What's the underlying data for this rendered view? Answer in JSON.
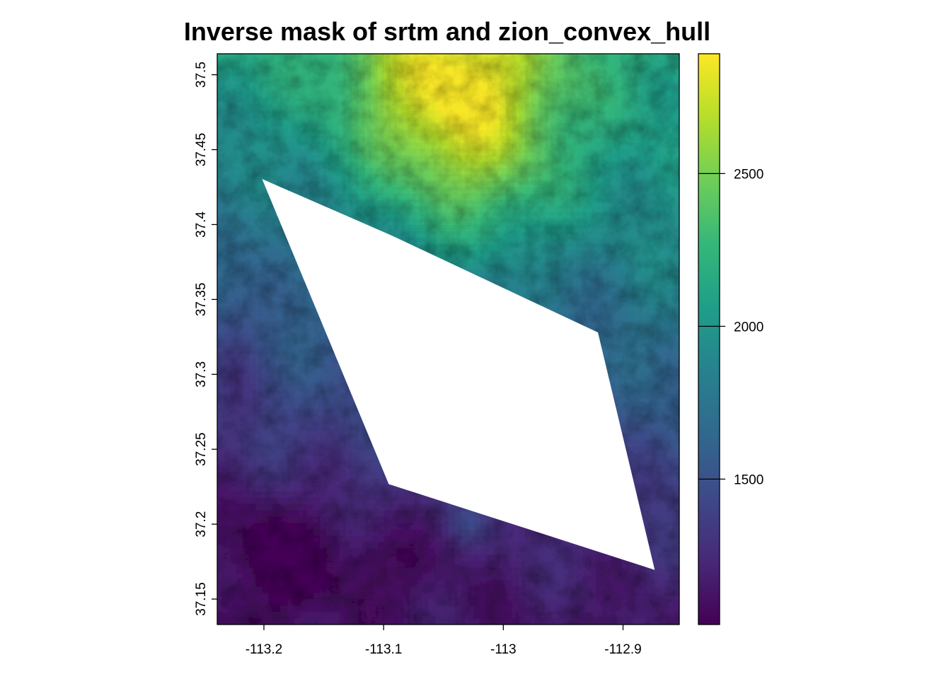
{
  "chart_data": {
    "type": "heatmap",
    "title": "Inverse mask of srtm and zion_convex_hull",
    "xlabel": "",
    "ylabel": "",
    "xlim": [
      -113.239,
      -112.853
    ],
    "ylim": [
      37.133,
      37.514
    ],
    "x_ticks": [
      -113.2,
      -113.1,
      -113.0,
      -112.9
    ],
    "x_tick_labels": [
      "-113.2",
      "-113.1",
      "-113",
      "-112.9"
    ],
    "y_ticks": [
      37.15,
      37.2,
      37.25,
      37.3,
      37.35,
      37.4,
      37.45,
      37.5
    ],
    "y_tick_labels": [
      "37.15",
      "37.2",
      "37.25",
      "37.3",
      "37.35",
      "37.4",
      "37.45",
      "37.5"
    ],
    "colorbar": {
      "palette": "viridis",
      "range": [
        1024,
        2892
      ],
      "ticks": [
        1500,
        2000,
        2500
      ],
      "tick_labels": [
        "1500",
        "2000",
        "2500"
      ],
      "colors": [
        "#440154",
        "#482878",
        "#3e4989",
        "#31688e",
        "#26828e",
        "#1f9e89",
        "#35b779",
        "#6ece58",
        "#b5de2b",
        "#fde725"
      ]
    },
    "masked_region": {
      "vertices_lon_lat": [
        [
          -113.2015,
          37.4304
        ],
        [
          -113.0939,
          37.3929
        ],
        [
          -112.921,
          37.328
        ],
        [
          -112.8735,
          37.1695
        ],
        [
          -113.0957,
          37.2267
        ]
      ],
      "fill": "#ffffff"
    },
    "elevation_pattern": {
      "high_elevation_regions": [
        "north-center",
        "north-east"
      ],
      "low_elevation_regions": [
        "south-west",
        "south"
      ],
      "peak_location_lon_lat": [
        -113.04,
        37.49
      ]
    },
    "grid": false,
    "legend": "right"
  }
}
